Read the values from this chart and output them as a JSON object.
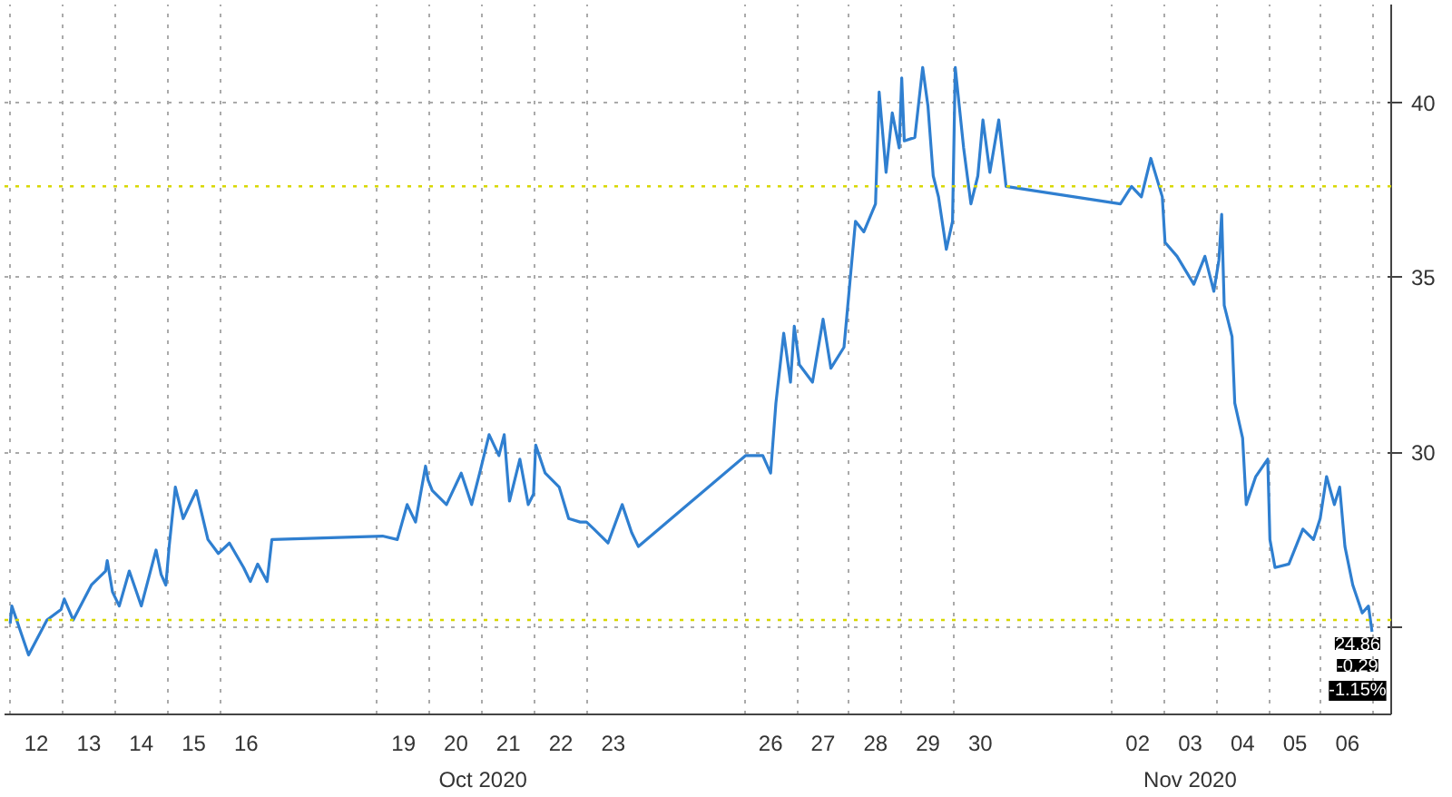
{
  "chart_data": {
    "type": "line",
    "x": [
      "2020-10-12T00:00",
      "2020-10-12T00:45",
      "2020-10-12T08:25",
      "2020-10-12T16:50",
      "2020-10-12T23:15",
      "2020-10-13T00:45",
      "2020-10-13T04:50",
      "2020-10-13T13:10",
      "2020-10-13T19:40",
      "2020-10-13T20:25",
      "2020-10-13T22:50",
      "2020-10-14T01:55",
      "2020-10-14T06:30",
      "2020-10-14T12:00",
      "2020-10-14T18:45",
      "2020-10-14T21:05",
      "2020-10-14T23:15",
      "2020-10-15T00:45",
      "2020-10-15T03:35",
      "2020-10-15T07:10",
      "2020-10-15T13:10",
      "2020-10-15T18:30",
      "2020-10-15T23:15",
      "2020-10-16T04:20",
      "2020-10-16T10:50",
      "2020-10-16T13:55",
      "2020-10-16T17:15",
      "2020-10-16T21:35",
      "2020-10-16T23:45",
      "2020-10-19T02:25",
      "2020-10-19T09:10",
      "2020-10-19T13:40",
      "2020-10-19T17:30",
      "2020-10-19T22:05",
      "2020-10-19T23:15",
      "2020-10-20T01:10",
      "2020-10-20T07:40",
      "2020-10-20T14:25",
      "2020-10-20T19:10",
      "2020-10-20T23:15",
      "2020-10-21T03:10",
      "2020-10-21T07:40",
      "2020-10-21T10:05",
      "2020-10-21T12:30",
      "2020-10-21T17:15",
      "2020-10-21T21:05",
      "2020-10-21T23:30",
      "2020-10-22T00:30",
      "2020-10-22T04:50",
      "2020-10-22T11:15",
      "2020-10-22T15:35",
      "2020-10-22T20:50",
      "2020-10-22T23:45",
      "2020-10-23T03:10",
      "2020-10-23T09:35",
      "2020-10-23T16:05",
      "2020-10-23T20:25",
      "2020-10-23T23:30",
      "2020-10-26T00:30",
      "2020-10-26T08:25",
      "2020-10-26T12:00",
      "2020-10-26T14:25",
      "2020-10-26T18:00",
      "2020-10-26T21:05",
      "2020-10-26T22:50",
      "2020-10-27T01:10",
      "2020-10-27T07:10",
      "2020-10-27T12:00",
      "2020-10-27T15:35",
      "2020-10-27T21:35",
      "2020-10-28T00:30",
      "2020-10-28T02:50",
      "2020-10-28T06:40",
      "2020-10-28T12:00",
      "2020-10-28T13:40",
      "2020-10-28T16:50",
      "2020-10-28T19:40",
      "2020-10-28T22:50",
      "2020-10-29T00:00",
      "2020-10-29T01:10",
      "2020-10-29T06:00",
      "2020-10-29T09:35",
      "2020-10-29T12:00",
      "2020-10-29T14:25",
      "2020-10-29T16:50",
      "2020-10-29T20:25",
      "2020-10-29T23:15",
      "2020-10-30T00:30",
      "2020-10-30T04:20",
      "2020-10-30T07:40",
      "2020-10-30T10:50",
      "2020-10-30T13:10",
      "2020-10-30T16:20",
      "2020-10-30T20:25",
      "2020-10-30T23:45",
      "2020-11-02T04:05",
      "2020-11-02T09:10",
      "2020-11-02T13:40",
      "2020-11-02T18:00",
      "2020-11-02T23:15",
      "2020-11-03T00:30",
      "2020-11-03T06:00",
      "2020-11-03T13:40",
      "2020-11-03T18:45",
      "2020-11-03T22:50",
      "2020-11-04T01:10",
      "2020-11-04T02:25",
      "2020-11-04T03:35",
      "2020-11-04T07:10",
      "2020-11-04T08:25",
      "2020-11-04T12:00",
      "2020-11-04T13:40",
      "2020-11-04T18:00",
      "2020-11-04T23:30",
      "2020-11-05T00:30",
      "2020-11-05T02:50",
      "2020-11-05T09:10",
      "2020-11-05T15:35",
      "2020-11-05T20:25",
      "2020-11-05T23:30",
      "2020-11-06T02:25",
      "2020-11-06T06:00",
      "2020-11-06T08:25",
      "2020-11-06T10:50",
      "2020-11-06T14:25",
      "2020-11-06T18:45",
      "2020-11-06T21:35",
      "2020-11-06T23:15"
    ],
    "series": [
      {
        "color": "#2f7fd0",
        "values": [
          25.1,
          25.6,
          24.2,
          25.2,
          25.5,
          25.8,
          25.2,
          26.2,
          26.6,
          26.9,
          26.0,
          25.6,
          26.6,
          25.6,
          27.2,
          26.5,
          26.2,
          27.3,
          29.0,
          28.1,
          28.9,
          27.5,
          27.1,
          27.4,
          26.7,
          26.3,
          26.8,
          26.3,
          27.5,
          27.6,
          27.5,
          28.5,
          28.0,
          29.6,
          29.2,
          28.9,
          28.5,
          29.4,
          28.5,
          29.5,
          30.5,
          29.9,
          30.5,
          28.6,
          29.8,
          28.5,
          28.8,
          30.2,
          29.4,
          29.0,
          28.1,
          28.0,
          28.0,
          27.8,
          27.4,
          28.5,
          27.7,
          27.3,
          29.9,
          29.9,
          29.4,
          31.4,
          33.4,
          32.0,
          33.6,
          32.5,
          32.0,
          33.8,
          32.4,
          33.0,
          35.0,
          36.6,
          36.3,
          37.1,
          40.3,
          38.0,
          39.7,
          38.7,
          40.7,
          38.9,
          39.0,
          41.0,
          39.9,
          37.9,
          37.3,
          35.8,
          36.6,
          41.0,
          38.7,
          37.1,
          37.9,
          39.5,
          38.0,
          39.5,
          37.6,
          37.1,
          37.6,
          37.3,
          38.4,
          37.3,
          36.0,
          35.6,
          34.8,
          35.6,
          34.6,
          35.5,
          36.8,
          34.2,
          33.3,
          31.4,
          30.4,
          28.5,
          29.3,
          29.8,
          27.5,
          26.7,
          26.8,
          27.8,
          27.5,
          28.1,
          29.3,
          28.5,
          29.0,
          27.3,
          26.2,
          25.4,
          25.6,
          24.86
        ]
      }
    ],
    "xlim": [
      "2020-10-11T21:25",
      "2020-11-07T08:00"
    ],
    "xticks": [
      {
        "value": "2020-10-12",
        "label": null
      },
      {
        "value": "2020-10-12T12:00",
        "label": "12"
      },
      {
        "value": "2020-10-13",
        "label": null
      },
      {
        "value": "2020-10-13T12:00",
        "label": "13"
      },
      {
        "value": "2020-10-14",
        "label": null
      },
      {
        "value": "2020-10-14T12:00",
        "label": "14"
      },
      {
        "value": "2020-10-15",
        "label": null
      },
      {
        "value": "2020-10-15T12:00",
        "label": "15"
      },
      {
        "value": "2020-10-16",
        "label": null
      },
      {
        "value": "2020-10-16T12:00",
        "label": "16"
      },
      {
        "value": "2020-10-19",
        "label": null
      },
      {
        "value": "2020-10-19T12:00",
        "label": "19"
      },
      {
        "value": "2020-10-20",
        "label": null
      },
      {
        "value": "2020-10-20T12:00",
        "label": "20"
      },
      {
        "value": "2020-10-21",
        "label": null
      },
      {
        "value": "2020-10-21T12:00",
        "label": "21"
      },
      {
        "value": "2020-10-22",
        "label": null
      },
      {
        "value": "2020-10-22T12:00",
        "label": "22"
      },
      {
        "value": "2020-10-23",
        "label": null
      },
      {
        "value": "2020-10-23T12:00",
        "label": "23"
      },
      {
        "value": "2020-10-26",
        "label": null
      },
      {
        "value": "2020-10-26T12:00",
        "label": "26"
      },
      {
        "value": "2020-10-27",
        "label": null
      },
      {
        "value": "2020-10-27T12:00",
        "label": "27"
      },
      {
        "value": "2020-10-28",
        "label": null
      },
      {
        "value": "2020-10-28T12:00",
        "label": "28"
      },
      {
        "value": "2020-10-29",
        "label": null
      },
      {
        "value": "2020-10-29T12:00",
        "label": "29"
      },
      {
        "value": "2020-10-30",
        "label": null
      },
      {
        "value": "2020-10-30T12:00",
        "label": "30"
      },
      {
        "value": "2020-11-02",
        "label": null
      },
      {
        "value": "2020-11-02T12:00",
        "label": "02"
      },
      {
        "value": "2020-11-03",
        "label": null
      },
      {
        "value": "2020-11-03T12:00",
        "label": "03"
      },
      {
        "value": "2020-11-04",
        "label": null
      },
      {
        "value": "2020-11-04T12:00",
        "label": "04"
      },
      {
        "value": "2020-11-05",
        "label": null
      },
      {
        "value": "2020-11-05T12:00",
        "label": "05"
      },
      {
        "value": "2020-11-06",
        "label": null
      },
      {
        "value": "2020-11-06T12:00",
        "label": "06"
      },
      {
        "value": "2020-11-07",
        "label": null
      }
    ],
    "ylim": [
      22.5,
      42.8
    ],
    "yticks": [
      {
        "value": 25,
        "label": null
      },
      30,
      35,
      40
    ],
    "grid": true,
    "ref_lines": [
      {
        "axis": "y",
        "value": 37.6,
        "color": "#d8d800",
        "line_style": "dotted"
      },
      {
        "axis": "y",
        "value": 25.2,
        "color": "#d8d800",
        "line_style": "dotted"
      }
    ],
    "annotations": [
      "Oct 2020",
      "Nov 2020",
      {
        "text": "24.86",
        "x": "2020-11-06T23:15",
        "y": 24.86
      },
      "-0.29",
      "-1.15%"
    ],
    "line_style": "solid",
    "marker": "none"
  }
}
